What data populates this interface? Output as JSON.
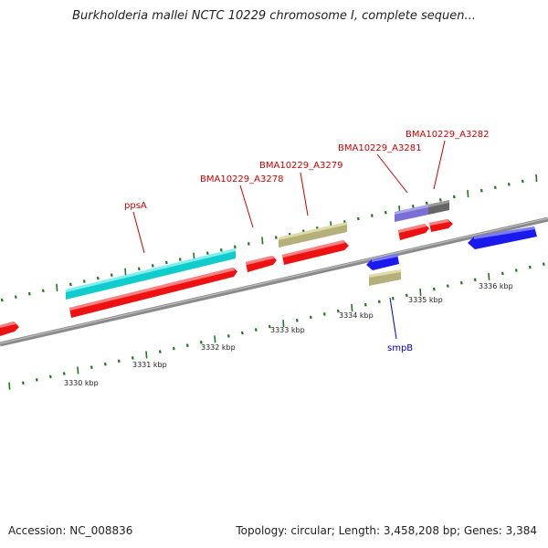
{
  "title": "Burkholderia mallei NCTC 10229 chromosome I, complete sequen...",
  "footer": {
    "accession": "Accession: NC_008836",
    "summary": "Topology: circular; Length: 3,458,208 bp; Genes: 3,384"
  },
  "colors": {
    "backbone": "#8a8a8a",
    "tick": "#1e7a1e",
    "cds": "#ee1111",
    "label_red": "#cc0000",
    "label_blue": "#0000cc",
    "gene_blue": "#1a1aee",
    "cyan": "#11cccc",
    "olive": "#b5b07a",
    "purple": "#7b6fd6",
    "gray": "#666666"
  },
  "axis": {
    "unit": "kbp",
    "tick_labels": [
      "3330 kbp",
      "3331 kbp",
      "3332 kbp",
      "3333 kbp",
      "3334 kbp",
      "3335 kbp",
      "3336 kbp"
    ]
  },
  "gene_labels": {
    "ppsA": "ppsA",
    "a3278": "BMA10229_A3278",
    "a3279": "BMA10229_A3279",
    "a3281": "BMA10229_A3281",
    "a3282": "BMA10229_A3282",
    "smpB": "smpB"
  }
}
